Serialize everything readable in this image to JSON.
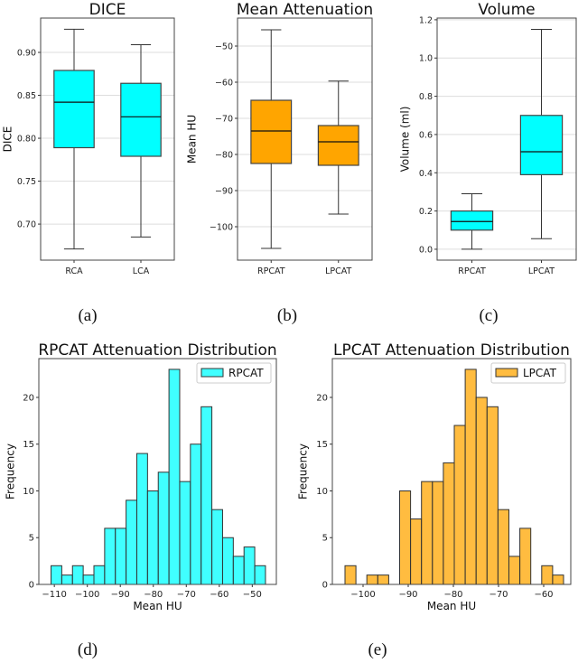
{
  "chart_data": [
    {
      "type": "box",
      "title": "DICE",
      "ylabel": "DICE",
      "xlabel": "",
      "ylim": [
        0.658,
        0.94
      ],
      "yticks": [
        0.7,
        0.75,
        0.8,
        0.85,
        0.9
      ],
      "ytick_labels": [
        "0.70",
        "0.75",
        "0.80",
        "0.85",
        "0.90"
      ],
      "grid": "horizontal",
      "caption": "(a)",
      "categories": [
        "RCA",
        "LCA"
      ],
      "colors": [
        "#00ffff",
        "#00ffff"
      ],
      "boxes": [
        {
          "whislo": 0.671,
          "q1": 0.789,
          "med": 0.842,
          "q3": 0.879,
          "whishi": 0.927
        },
        {
          "whislo": 0.685,
          "q1": 0.779,
          "med": 0.825,
          "q3": 0.864,
          "whishi": 0.909
        }
      ]
    },
    {
      "type": "box",
      "title": "Mean Attenuation",
      "ylabel": "Mean HU",
      "xlabel": "",
      "ylim": [
        -109.25,
        -42.25
      ],
      "yticks": [
        -100,
        -90,
        -80,
        -70,
        -60,
        -50
      ],
      "ytick_labels": [
        "−100",
        "−90",
        "−80",
        "−70",
        "−60",
        "−50"
      ],
      "grid": "horizontal",
      "caption": "(b)",
      "categories": [
        "RPCAT",
        "LPCAT"
      ],
      "colors": [
        "#ffa500",
        "#ffa500"
      ],
      "boxes": [
        {
          "whislo": -106,
          "q1": -82.5,
          "med": -73.5,
          "q3": -65,
          "whishi": -45.5
        },
        {
          "whislo": -96.5,
          "q1": -83,
          "med": -76.5,
          "q3": -72,
          "whishi": -59.7
        }
      ]
    },
    {
      "type": "box",
      "title": "Volume",
      "ylabel": "Volume (ml)",
      "xlabel": "",
      "ylim": [
        -0.057,
        1.209
      ],
      "yticks": [
        0.0,
        0.2,
        0.4,
        0.6,
        0.8,
        1.0,
        1.2
      ],
      "ytick_labels": [
        "0.0",
        "0.2",
        "0.4",
        "0.6",
        "0.8",
        "1.0",
        "1.2"
      ],
      "grid": "horizontal",
      "caption": "(c)",
      "categories": [
        "RPCAT",
        "LPCAT"
      ],
      "colors": [
        "#00ffff",
        "#00ffff"
      ],
      "boxes": [
        {
          "whislo": 0.0,
          "q1": 0.1,
          "med": 0.145,
          "q3": 0.2,
          "whishi": 0.29
        },
        {
          "whislo": 0.055,
          "q1": 0.39,
          "med": 0.51,
          "q3": 0.7,
          "whishi": 1.15
        }
      ]
    },
    {
      "type": "histogram",
      "title": "RPCAT Attenuation Distribution",
      "xlabel": "Mean HU",
      "ylabel": "Frequency",
      "xlim": [
        -114.7,
        -42.7
      ],
      "ylim": [
        0,
        24.15
      ],
      "xticks": [
        -110,
        -100,
        -90,
        -80,
        -70,
        -60,
        -50
      ],
      "xtick_labels": [
        "−110",
        "−100",
        "−90",
        "−80",
        "−70",
        "−60",
        "−50"
      ],
      "yticks": [
        0,
        5,
        10,
        15,
        20
      ],
      "ytick_labels": [
        "0",
        "5",
        "10",
        "15",
        "20"
      ],
      "grid": false,
      "legend": {
        "position": "top-right",
        "entries": [
          "RPCAT"
        ]
      },
      "caption": "(d)",
      "color": "#00ffff",
      "bin_start": -111,
      "bin_end": -46,
      "counts": [
        2,
        1,
        2,
        1,
        2,
        6,
        6,
        9,
        14,
        10,
        12,
        23,
        11,
        15,
        19,
        8,
        5,
        3,
        4,
        2
      ]
    },
    {
      "type": "histogram",
      "title": "LPCAT Attenuation Distribution",
      "xlabel": "Mean HU",
      "ylabel": "Frequency",
      "xlim": [
        -106.8,
        -54
      ],
      "ylim": [
        0,
        24.15
      ],
      "xticks": [
        -100,
        -90,
        -80,
        -70,
        -60
      ],
      "xtick_labels": [
        "−100",
        "−90",
        "−80",
        "−70",
        "−60"
      ],
      "yticks": [
        0,
        5,
        10,
        15,
        20
      ],
      "ytick_labels": [
        "0",
        "5",
        "10",
        "15",
        "20"
      ],
      "grid": false,
      "legend": {
        "position": "top-right",
        "entries": [
          "LPCAT"
        ]
      },
      "caption": "(e)",
      "color": "#ffa500",
      "bin_start": -104,
      "bin_end": -55.6,
      "counts": [
        2,
        0,
        1,
        1,
        0,
        10,
        7,
        11,
        11,
        13,
        17,
        23,
        20,
        19,
        8,
        3,
        6,
        0,
        2,
        1
      ]
    }
  ]
}
